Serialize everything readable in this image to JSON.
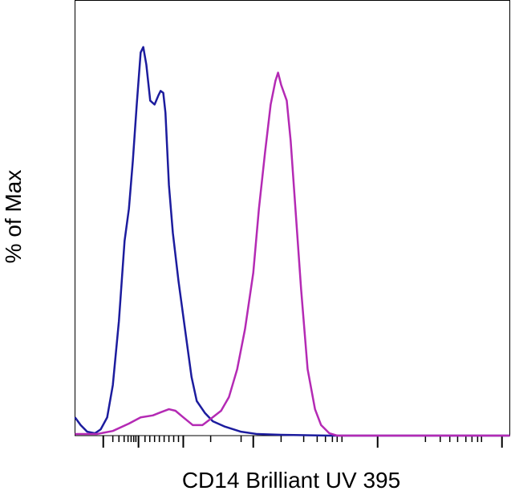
{
  "chart_data": {
    "type": "line",
    "x_label": "CD14 Brilliant UV 395",
    "y_label": "% of Max",
    "xlim": [
      0,
      100
    ],
    "ylim": [
      0,
      112
    ],
    "xticks": [
      6.5,
      14.6,
      24.9,
      41.0,
      69.6,
      98.2
    ],
    "xminorticks": [
      8.7,
      10.1,
      11.3,
      12.2,
      12.9,
      13.5,
      14.0,
      16.1,
      17.2,
      18.3,
      19.4,
      20.5,
      21.6,
      22.7,
      23.8,
      31.2,
      38.2,
      47.4,
      52.6,
      55.7,
      57.6,
      59.2,
      60.3,
      61.4,
      80.6,
      84.0,
      86.2,
      88.0,
      89.9,
      91.3,
      92.6,
      93.5
    ],
    "series": [
      {
        "color": "#1c1c9e",
        "x": [
          0,
          1.3,
          2.8,
          4.6,
          5.9,
          7.4,
          8.7,
          10.1,
          11.4,
          12.4,
          13.3,
          14.2,
          15.1,
          15.7,
          16.4,
          17.3,
          18.3,
          19.2,
          19.7,
          20.3,
          20.8,
          21.6,
          22.5,
          23.8,
          25.3,
          26.8,
          28.0,
          29.9,
          31.7,
          34.5,
          38.2,
          41.9,
          47.4,
          58.5,
          100
        ],
        "values": [
          4.7,
          2.7,
          1.0,
          0.6,
          1.6,
          4.7,
          13.0,
          29.5,
          50.1,
          58.4,
          70.7,
          85.2,
          98.6,
          100,
          95.5,
          86.2,
          85.2,
          87.6,
          88.7,
          88.2,
          83.1,
          64.5,
          52.2,
          39.8,
          27.4,
          15.1,
          8.9,
          5.8,
          3.7,
          2.3,
          1.0,
          0.4,
          0.2,
          0,
          0
        ]
      },
      {
        "color": "#b42ab4",
        "x": [
          0,
          5.0,
          8.7,
          12.4,
          15.1,
          17.9,
          19.7,
          21.6,
          23.1,
          24.9,
          27.1,
          29.3,
          31.2,
          33.6,
          35.4,
          37.3,
          39.1,
          41.0,
          42.3,
          43.7,
          45.0,
          46.1,
          46.7,
          47.4,
          48.7,
          49.6,
          50.7,
          52.0,
          53.5,
          55.2,
          56.6,
          58.5,
          60.3,
          100
        ],
        "values": [
          0.4,
          0.4,
          1.2,
          3.1,
          4.7,
          5.2,
          6.0,
          6.8,
          6.4,
          4.7,
          2.7,
          2.7,
          4.3,
          6.4,
          9.9,
          17.1,
          27.4,
          41.9,
          58.4,
          72.8,
          85.2,
          91.3,
          93.4,
          90.3,
          86.2,
          75.9,
          58.4,
          37.7,
          17.1,
          6.8,
          2.7,
          0.6,
          0,
          0
        ]
      }
    ]
  }
}
